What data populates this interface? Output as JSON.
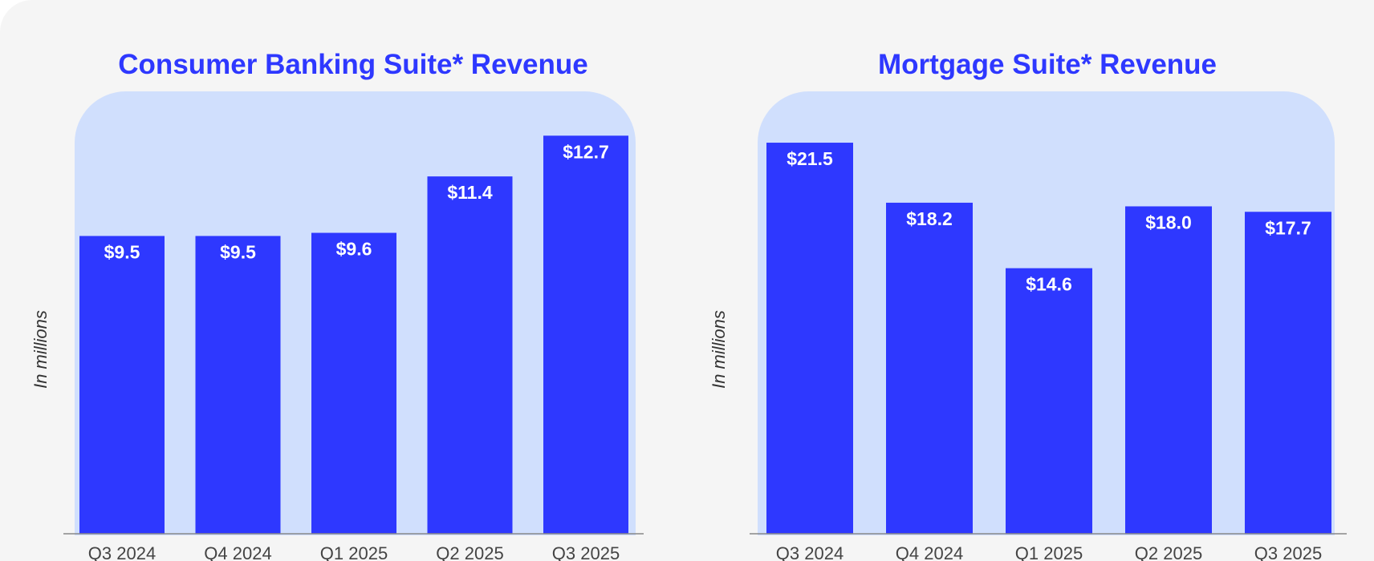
{
  "colors": {
    "bar": "#2e38ff",
    "panel": "#d0dffd",
    "title": "#2e38ff",
    "axis": "#888888"
  },
  "chart_data": [
    {
      "type": "bar",
      "title": "Consumer Banking Suite* Revenue",
      "ylabel": "In millions",
      "categories": [
        "Q3 2024",
        "Q4 2024",
        "Q1 2025",
        "Q2 2025",
        "Q3 2025"
      ],
      "values": [
        9.5,
        9.5,
        9.6,
        11.4,
        12.7
      ],
      "labels": [
        "$9.5",
        "$9.5",
        "$9.6",
        "$11.4",
        "$12.7"
      ],
      "ylim": [
        0,
        13.5
      ]
    },
    {
      "type": "bar",
      "title": "Mortgage Suite* Revenue",
      "ylabel": "In millions",
      "categories": [
        "Q3 2024",
        "Q4 2024",
        "Q1 2025",
        "Q2 2025",
        "Q3 2025"
      ],
      "values": [
        21.5,
        18.2,
        14.6,
        18.0,
        17.7
      ],
      "labels": [
        "$21.5",
        "$18.2",
        "$14.6",
        "$18.0",
        "$17.7"
      ],
      "ylim": [
        0,
        23
      ]
    }
  ]
}
